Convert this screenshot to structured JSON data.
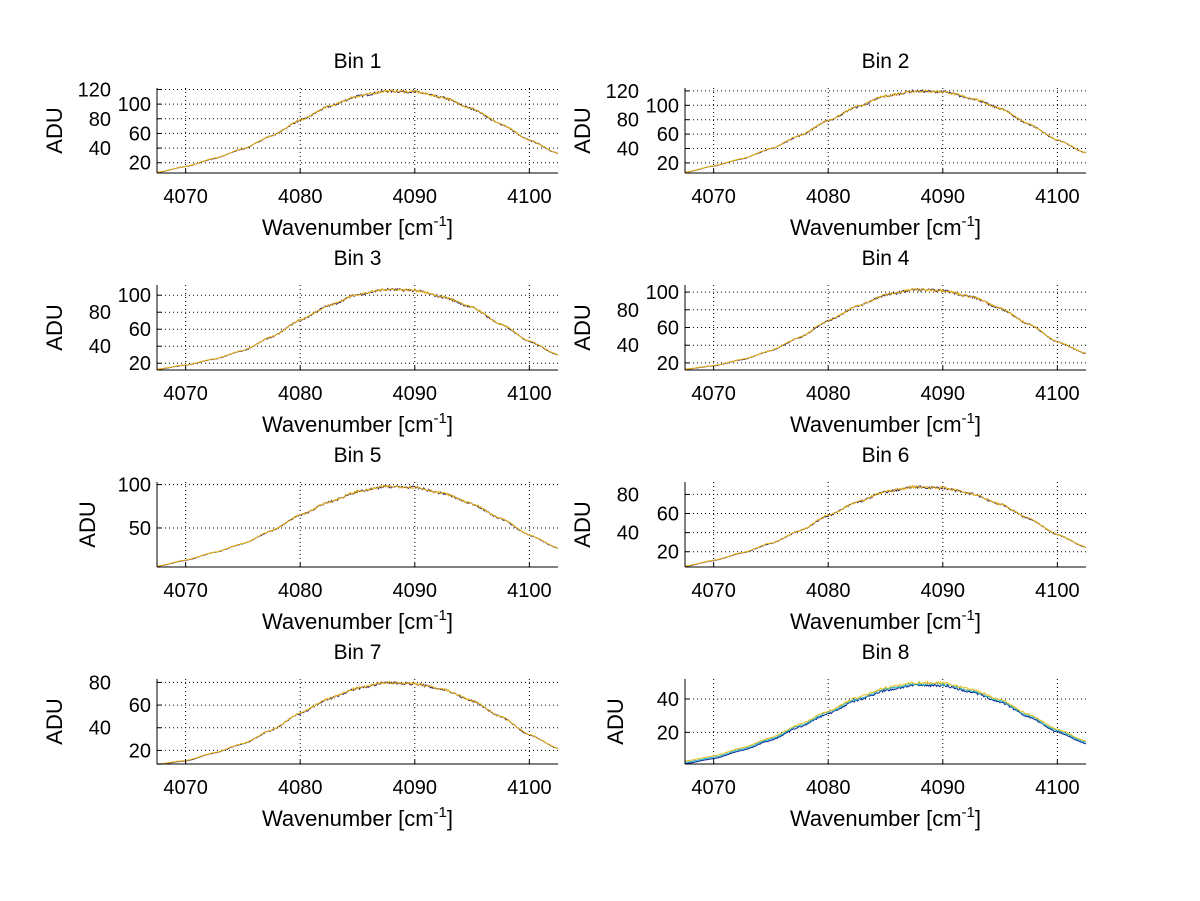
{
  "chart_data": [
    {
      "type": "line",
      "title": "Bin 1",
      "xlabel_prefix": "Wavenumber [cm",
      "xlabel_sup": "-1",
      "xlabel_suffix": "]",
      "ylabel": "ADU",
      "xlim": [
        4067.5,
        4102.5
      ],
      "ylim": [
        6,
        122
      ],
      "xticks": [
        4070,
        4080,
        4090,
        4100
      ],
      "yticks": [
        20,
        40,
        60,
        80,
        100,
        120
      ],
      "grid": true,
      "x": [
        4067.5,
        4070,
        4072.5,
        4075,
        4077.5,
        4080,
        4082.5,
        4085,
        4087.5,
        4090,
        4092.5,
        4095,
        4097.5,
        4100,
        4102.5
      ],
      "values": [
        7,
        15,
        26,
        39,
        57,
        78,
        97,
        111,
        118,
        117,
        109,
        94,
        73,
        51,
        33
      ]
    },
    {
      "type": "line",
      "title": "Bin 2",
      "xlabel_prefix": "Wavenumber [cm",
      "xlabel_sup": "-1",
      "xlabel_suffix": "]",
      "ylabel": "ADU",
      "xlim": [
        4067.5,
        4102.5
      ],
      "ylim": [
        6,
        124
      ],
      "xticks": [
        4070,
        4080,
        4090,
        4100
      ],
      "yticks": [
        20,
        40,
        60,
        80,
        100,
        120
      ],
      "grid": true,
      "x": [
        4067.5,
        4070,
        4072.5,
        4075,
        4077.5,
        4080,
        4082.5,
        4085,
        4087.5,
        4090,
        4092.5,
        4095,
        4097.5,
        4100,
        4102.5
      ],
      "values": [
        7,
        16,
        26,
        40,
        58,
        79,
        98,
        113,
        120,
        119,
        110,
        96,
        74,
        52,
        34
      ]
    },
    {
      "type": "line",
      "title": "Bin 3",
      "xlabel_prefix": "Wavenumber [cm",
      "xlabel_sup": "-1",
      "xlabel_suffix": "]",
      "ylabel": "ADU",
      "xlim": [
        4067.5,
        4102.5
      ],
      "ylim": [
        12,
        112
      ],
      "xticks": [
        4070,
        4080,
        4090,
        4100
      ],
      "yticks": [
        20,
        40,
        60,
        80,
        100
      ],
      "grid": true,
      "x": [
        4067.5,
        4070,
        4072.5,
        4075,
        4077.5,
        4080,
        4082.5,
        4085,
        4087.5,
        4090,
        4092.5,
        4095,
        4097.5,
        4100,
        4102.5
      ],
      "values": [
        13,
        18,
        25,
        35,
        51,
        71,
        88,
        101,
        107,
        106,
        98,
        86,
        66,
        46,
        30
      ]
    },
    {
      "type": "line",
      "title": "Bin 4",
      "xlabel_prefix": "Wavenumber [cm",
      "xlabel_sup": "-1",
      "xlabel_suffix": "]",
      "ylabel": "ADU",
      "xlim": [
        4067.5,
        4102.5
      ],
      "ylim": [
        12,
        108
      ],
      "xticks": [
        4070,
        4080,
        4090,
        4100
      ],
      "yticks": [
        20,
        40,
        60,
        80,
        100
      ],
      "grid": true,
      "x": [
        4067.5,
        4070,
        4072.5,
        4075,
        4077.5,
        4080,
        4082.5,
        4085,
        4087.5,
        4090,
        4092.5,
        4095,
        4097.5,
        4100,
        4102.5
      ],
      "values": [
        13,
        17,
        24,
        34,
        49,
        68,
        84,
        97,
        103,
        102,
        95,
        82,
        64,
        44,
        31
      ]
    },
    {
      "type": "line",
      "title": "Bin 5",
      "xlabel_prefix": "Wavenumber [cm",
      "xlabel_sup": "-1",
      "xlabel_suffix": "]",
      "ylabel": "ADU",
      "xlim": [
        4067.5,
        4102.5
      ],
      "ylim": [
        5,
        103
      ],
      "xticks": [
        4070,
        4080,
        4090,
        4100
      ],
      "yticks": [
        50,
        100
      ],
      "grid": true,
      "x": [
        4067.5,
        4070,
        4072.5,
        4075,
        4077.5,
        4080,
        4082.5,
        4085,
        4087.5,
        4090,
        4092.5,
        4095,
        4097.5,
        4100,
        4102.5
      ],
      "values": [
        6,
        13,
        22,
        32,
        47,
        65,
        80,
        92,
        98,
        97,
        90,
        78,
        61,
        42,
        27
      ]
    },
    {
      "type": "line",
      "title": "Bin 6",
      "xlabel_prefix": "Wavenumber [cm",
      "xlabel_sup": "-1",
      "xlabel_suffix": "]",
      "ylabel": "ADU",
      "xlim": [
        4067.5,
        4102.5
      ],
      "ylim": [
        4,
        93
      ],
      "xticks": [
        4070,
        4080,
        4090,
        4100
      ],
      "yticks": [
        20,
        40,
        60,
        80
      ],
      "grid": true,
      "x": [
        4067.5,
        4070,
        4072.5,
        4075,
        4077.5,
        4080,
        4082.5,
        4085,
        4087.5,
        4090,
        4092.5,
        4095,
        4097.5,
        4100,
        4102.5
      ],
      "values": [
        5,
        11,
        19,
        29,
        42,
        58,
        72,
        83,
        88,
        87,
        81,
        70,
        55,
        38,
        25
      ]
    },
    {
      "type": "line",
      "title": "Bin 7",
      "xlabel_prefix": "Wavenumber [cm",
      "xlabel_sup": "-1",
      "xlabel_suffix": "]",
      "ylabel": "ADU",
      "xlim": [
        4067.5,
        4102.5
      ],
      "ylim": [
        8,
        83
      ],
      "xticks": [
        4070,
        4080,
        4090,
        4100
      ],
      "yticks": [
        20,
        40,
        60,
        80
      ],
      "grid": true,
      "x": [
        4067.5,
        4070,
        4072.5,
        4075,
        4077.5,
        4080,
        4082.5,
        4085,
        4087.5,
        4090,
        4092.5,
        4095,
        4097.5,
        4100,
        4102.5
      ],
      "values": [
        8,
        11,
        18,
        26,
        38,
        53,
        66,
        75,
        80,
        79,
        74,
        64,
        50,
        34,
        22
      ]
    },
    {
      "type": "line",
      "title": "Bin 8",
      "xlabel_prefix": "Wavenumber [cm",
      "xlabel_sup": "-1",
      "xlabel_suffix": "]",
      "ylabel": "ADU",
      "xlim": [
        4067.5,
        4102.5
      ],
      "ylim": [
        1,
        52
      ],
      "xticks": [
        4070,
        4080,
        4090,
        4100
      ],
      "yticks": [
        20,
        40
      ],
      "grid": true,
      "x": [
        4067.5,
        4070,
        4072.5,
        4075,
        4077.5,
        4080,
        4082.5,
        4085,
        4087.5,
        4090,
        4092.5,
        4095,
        4097.5,
        4100,
        4102.5
      ],
      "values": [
        2,
        5,
        10,
        16,
        24,
        32,
        40,
        46,
        49,
        49,
        45,
        39,
        30,
        21,
        14
      ]
    }
  ],
  "colors": {
    "main_line": "#e8b010",
    "under_line": "#3a2a6a",
    "bin8_lines": [
      "#00208f",
      "#20b0c0",
      "#e8c020"
    ],
    "grid": "#000000"
  }
}
